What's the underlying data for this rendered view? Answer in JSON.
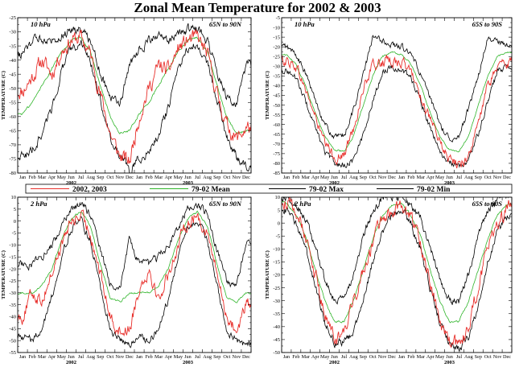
{
  "title": "Zonal Mean Temperature for 2002 & 2003",
  "legend": [
    {
      "label": "2002, 2003",
      "color": "#e8302c"
    },
    {
      "label": "79-02 Mean",
      "color": "#2fb52a"
    },
    {
      "label": "79-02 Max",
      "color": "#000000"
    },
    {
      "label": "79-02 Min",
      "color": "#000000"
    }
  ],
  "months": [
    "Jan",
    "Feb",
    "Mar",
    "Apr",
    "May",
    "Jun",
    "Jul",
    "Aug",
    "Sep",
    "Oct",
    "Nov",
    "Dec",
    "Jan",
    "Feb",
    "Mar",
    "Apr",
    "May",
    "Jun",
    "Jul",
    "Aug",
    "Sep",
    "Oct",
    "Nov",
    "Dec"
  ],
  "years": [
    {
      "label": "2002",
      "month_index": 5.5
    },
    {
      "label": "2003",
      "month_index": 17.5
    }
  ],
  "chart_data": [
    {
      "type": "line",
      "level": "10 hPa",
      "region": "65N to 90N",
      "ylabel": "TEMPERATURE (C)",
      "ylim": [
        -80,
        -25
      ],
      "yticks": [
        -80,
        -75,
        -70,
        -65,
        -60,
        -55,
        -50,
        -45,
        -40,
        -35,
        -30,
        -25
      ],
      "x": [
        "2002-01",
        "2002-02",
        "2002-03",
        "2002-04",
        "2002-05",
        "2002-06",
        "2002-07",
        "2002-08",
        "2002-09",
        "2002-10",
        "2002-11",
        "2002-12",
        "2003-01",
        "2003-02",
        "2003-03",
        "2003-04",
        "2003-05",
        "2003-06",
        "2003-07",
        "2003-08",
        "2003-09",
        "2003-10",
        "2003-11",
        "2003-12"
      ],
      "series": [
        {
          "name": "2002, 2003",
          "color": "#e8302c",
          "values": [
            -51,
            -46,
            -40,
            -45,
            -37,
            -33,
            -32,
            -38,
            -52,
            -66,
            -74,
            -76,
            -60,
            -50,
            -42,
            -44,
            -36,
            -33,
            -32,
            -38,
            -52,
            -63,
            -68,
            -64
          ]
        },
        {
          "name": "79-02 Mean",
          "color": "#2fb52a",
          "values": [
            -59,
            -55,
            -49,
            -43,
            -37,
            -33,
            -32,
            -37,
            -49,
            -60,
            -66,
            -65,
            -59,
            -55,
            -49,
            -43,
            -37,
            -33,
            -32,
            -37,
            -49,
            -60,
            -66,
            -65
          ]
        },
        {
          "name": "79-02 Max",
          "color": "#000000",
          "values": [
            -38,
            -33,
            -32,
            -33,
            -31,
            -29,
            -29,
            -33,
            -44,
            -53,
            -56,
            -42,
            -36,
            -33,
            -32,
            -33,
            -31,
            -29,
            -29,
            -33,
            -44,
            -53,
            -56,
            -42
          ]
        },
        {
          "name": "79-02 Min",
          "color": "#000000",
          "values": [
            -74,
            -72,
            -66,
            -57,
            -44,
            -36,
            -34,
            -41,
            -54,
            -67,
            -74,
            -79,
            -75,
            -72,
            -66,
            -57,
            -44,
            -36,
            -34,
            -41,
            -54,
            -67,
            -74,
            -77
          ]
        }
      ]
    },
    {
      "type": "line",
      "level": "10 hPa",
      "region": "65S to 90S",
      "ylabel": "TEMPERATURE (C)",
      "ylim": [
        -85,
        -5
      ],
      "yticks": [
        -85,
        -80,
        -75,
        -70,
        -65,
        -60,
        -55,
        -50,
        -45,
        -40,
        -35,
        -30,
        -25,
        -20,
        -15,
        -10,
        -5
      ],
      "x": [
        "2002-01",
        "2002-02",
        "2002-03",
        "2002-04",
        "2002-05",
        "2002-06",
        "2002-07",
        "2002-08",
        "2002-09",
        "2002-10",
        "2002-11",
        "2002-12",
        "2003-01",
        "2003-02",
        "2003-03",
        "2003-04",
        "2003-05",
        "2003-06",
        "2003-07",
        "2003-08",
        "2003-09",
        "2003-10",
        "2003-11",
        "2003-12"
      ],
      "series": [
        {
          "name": "2002, 2003",
          "color": "#e8302c",
          "values": [
            -27,
            -30,
            -42,
            -56,
            -70,
            -77,
            -76,
            -62,
            -42,
            -30,
            -28,
            -27,
            -28,
            -33,
            -45,
            -58,
            -70,
            -78,
            -81,
            -76,
            -60,
            -40,
            -30,
            -28
          ]
        },
        {
          "name": "79-02 Mean",
          "color": "#2fb52a",
          "values": [
            -24,
            -29,
            -40,
            -54,
            -66,
            -73,
            -74,
            -66,
            -50,
            -35,
            -25,
            -23,
            -24,
            -29,
            -40,
            -54,
            -66,
            -73,
            -74,
            -66,
            -50,
            -35,
            -25,
            -23
          ]
        },
        {
          "name": "79-02 Max",
          "color": "#000000",
          "values": [
            -20,
            -24,
            -34,
            -47,
            -60,
            -67,
            -66,
            -52,
            -35,
            -15,
            -17,
            -19,
            -20,
            -24,
            -34,
            -47,
            -60,
            -67,
            -66,
            -52,
            -35,
            -16,
            -17,
            -19
          ]
        },
        {
          "name": "79-02 Min",
          "color": "#000000",
          "values": [
            -32,
            -36,
            -48,
            -62,
            -74,
            -80,
            -81,
            -78,
            -65,
            -48,
            -33,
            -30,
            -32,
            -36,
            -48,
            -62,
            -74,
            -80,
            -81,
            -78,
            -65,
            -48,
            -33,
            -30
          ]
        }
      ]
    },
    {
      "type": "line",
      "level": "2 hPa",
      "region": "65N to 90N",
      "ylabel": "TEMPERATURE (C)",
      "ylim": [
        -55,
        10
      ],
      "yticks": [
        -55,
        -50,
        -45,
        -40,
        -35,
        -30,
        -25,
        -20,
        -15,
        -10,
        -5,
        0,
        5,
        10
      ],
      "x": [
        "2002-01",
        "2002-02",
        "2002-03",
        "2002-04",
        "2002-05",
        "2002-06",
        "2002-07",
        "2002-08",
        "2002-09",
        "2002-10",
        "2002-11",
        "2002-12",
        "2003-01",
        "2003-02",
        "2003-03",
        "2003-04",
        "2003-05",
        "2003-06",
        "2003-07",
        "2003-08",
        "2003-09",
        "2003-10",
        "2003-11",
        "2003-12"
      ],
      "series": [
        {
          "name": "2002, 2003",
          "color": "#e8302c",
          "values": [
            -40,
            -30,
            -33,
            -22,
            -10,
            0,
            2,
            -5,
            -22,
            -40,
            -46,
            -45,
            -28,
            -20,
            -33,
            -22,
            -10,
            0,
            2,
            -5,
            -22,
            -40,
            -46,
            -35
          ]
        },
        {
          "name": "79-02 Mean",
          "color": "#2fb52a",
          "values": [
            -30,
            -30,
            -27,
            -20,
            -8,
            1,
            4,
            -2,
            -18,
            -32,
            -34,
            -30,
            -30,
            -30,
            -27,
            -20,
            -8,
            1,
            4,
            -2,
            -18,
            -32,
            -34,
            -30
          ]
        },
        {
          "name": "79-02 Max",
          "color": "#000000",
          "values": [
            -18,
            -18,
            -15,
            -10,
            -3,
            5,
            7,
            3,
            -12,
            -26,
            -28,
            -8,
            -18,
            -18,
            -15,
            -10,
            -3,
            5,
            7,
            3,
            -12,
            -26,
            -28,
            -8
          ]
        },
        {
          "name": "79-02 Min",
          "color": "#000000",
          "values": [
            -48,
            -50,
            -45,
            -32,
            -15,
            -3,
            0,
            -8,
            -27,
            -45,
            -50,
            -52,
            -48,
            -50,
            -45,
            -32,
            -15,
            -3,
            0,
            -8,
            -27,
            -45,
            -50,
            -52
          ]
        }
      ]
    },
    {
      "type": "line",
      "level": "2 hPa",
      "region": "65S to 90S",
      "ylabel": "TEMPERATURE (C)",
      "ylim": [
        -50,
        10
      ],
      "yticks": [
        -50,
        -45,
        -40,
        -35,
        -30,
        -25,
        -20,
        -15,
        -10,
        -5,
        0,
        5,
        10
      ],
      "x": [
        "2002-01",
        "2002-02",
        "2002-03",
        "2002-04",
        "2002-05",
        "2002-06",
        "2002-07",
        "2002-08",
        "2002-09",
        "2002-10",
        "2002-11",
        "2002-12",
        "2003-01",
        "2003-02",
        "2003-03",
        "2003-04",
        "2003-05",
        "2003-06",
        "2003-07",
        "2003-08",
        "2003-09",
        "2003-10",
        "2003-11",
        "2003-12"
      ],
      "series": [
        {
          "name": "2002, 2003",
          "color": "#e8302c",
          "values": [
            8,
            4,
            -5,
            -20,
            -35,
            -45,
            -44,
            -30,
            -18,
            -8,
            2,
            5,
            7,
            2,
            -8,
            -22,
            -38,
            -46,
            -48,
            -40,
            -25,
            -10,
            0,
            6
          ]
        },
        {
          "name": "79-02 Mean",
          "color": "#2fb52a",
          "values": [
            8,
            3,
            -5,
            -18,
            -30,
            -38,
            -38,
            -30,
            -18,
            -6,
            3,
            7,
            8,
            3,
            -5,
            -18,
            -30,
            -38,
            -38,
            -30,
            -18,
            -6,
            3,
            7
          ]
        },
        {
          "name": "79-02 Max",
          "color": "#000000",
          "values": [
            10,
            7,
            2,
            -10,
            -22,
            -30,
            -30,
            -20,
            -5,
            5,
            10,
            11,
            10,
            7,
            2,
            -10,
            -22,
            -30,
            -30,
            -20,
            -5,
            5,
            10,
            11
          ]
        },
        {
          "name": "79-02 Min",
          "color": "#000000",
          "values": [
            5,
            0,
            -10,
            -25,
            -38,
            -46,
            -46,
            -42,
            -30,
            -15,
            -3,
            3,
            5,
            0,
            -10,
            -25,
            -38,
            -46,
            -49,
            -44,
            -32,
            -15,
            -3,
            3
          ]
        }
      ]
    }
  ]
}
